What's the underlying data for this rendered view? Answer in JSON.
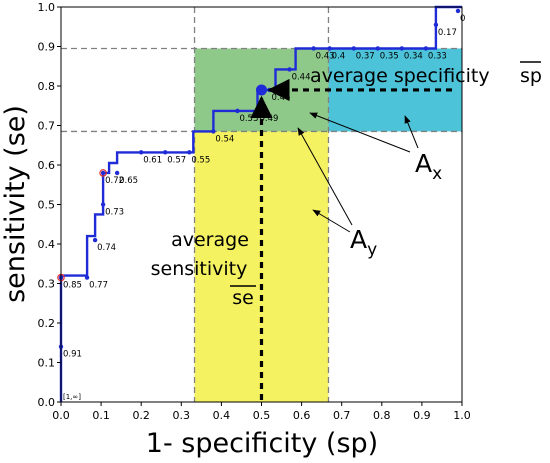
{
  "chart_data": {
    "type": "line",
    "xlabel": "1- specificity (sp)",
    "ylabel": "sensitivity (se)",
    "xlim": [
      0,
      1
    ],
    "ylim": [
      0,
      1
    ],
    "x_ticks": [
      "0.0",
      "0.1",
      "0.2",
      "0.3",
      "0.4",
      "0.5",
      "0.6",
      "0.7",
      "0.8",
      "0.9",
      "1.0"
    ],
    "y_ticks": [
      "0.0",
      "0.1",
      "0.2",
      "0.3",
      "0.4",
      "0.5",
      "0.6",
      "0.7",
      "0.8",
      "0.9",
      "1.0"
    ],
    "grid": false,
    "colors": {
      "curve": "#1f2bd6",
      "yellow_region": "#f5f262",
      "green_region": "#8fc98a",
      "blue_region": "#4cc3d8",
      "highlight_marker": "#e03030",
      "guide_lines": "#808080",
      "average_point": "#1f2bd6"
    },
    "roc_step": [
      [
        0.0,
        0.0
      ],
      [
        0.0,
        0.32
      ],
      [
        0.065,
        0.32
      ],
      [
        0.065,
        0.42
      ],
      [
        0.085,
        0.42
      ],
      [
        0.085,
        0.475
      ],
      [
        0.105,
        0.475
      ],
      [
        0.105,
        0.58
      ],
      [
        0.12,
        0.58
      ],
      [
        0.12,
        0.605
      ],
      [
        0.14,
        0.605
      ],
      [
        0.14,
        0.632
      ],
      [
        0.33,
        0.632
      ],
      [
        0.33,
        0.685
      ],
      [
        0.38,
        0.685
      ],
      [
        0.38,
        0.737
      ],
      [
        0.49,
        0.737
      ],
      [
        0.49,
        0.79
      ],
      [
        0.535,
        0.79
      ],
      [
        0.535,
        0.842
      ],
      [
        0.585,
        0.842
      ],
      [
        0.585,
        0.895
      ],
      [
        0.935,
        0.895
      ],
      [
        0.935,
        1.0
      ],
      [
        1.0,
        1.0
      ]
    ],
    "threshold_points": [
      {
        "x": 0.0,
        "y": 0.14,
        "label": "0.91"
      },
      {
        "x": 0.0,
        "y": 0.315,
        "label": "0.85"
      },
      {
        "x": 0.065,
        "y": 0.315,
        "label": "0.77"
      },
      {
        "x": 0.085,
        "y": 0.41,
        "label": "0.74"
      },
      {
        "x": 0.105,
        "y": 0.5,
        "label": "0.73"
      },
      {
        "x": 0.105,
        "y": 0.58,
        "label": "0.72"
      },
      {
        "x": 0.14,
        "y": 0.58,
        "label": "0.65"
      },
      {
        "x": 0.2,
        "y": 0.632,
        "label": "0.61"
      },
      {
        "x": 0.26,
        "y": 0.632,
        "label": "0.57"
      },
      {
        "x": 0.32,
        "y": 0.632,
        "label": "0.55"
      },
      {
        "x": 0.38,
        "y": 0.685,
        "label": "0.54"
      },
      {
        "x": 0.44,
        "y": 0.737,
        "label": "0.53"
      },
      {
        "x": 0.49,
        "y": 0.737,
        "label": "0.49"
      },
      {
        "x": 0.52,
        "y": 0.79,
        "label": "0.46"
      },
      {
        "x": 0.57,
        "y": 0.842,
        "label": "0.44"
      },
      {
        "x": 0.63,
        "y": 0.895,
        "label": "0.43"
      },
      {
        "x": 0.67,
        "y": 0.895,
        "label": "0.4"
      },
      {
        "x": 0.73,
        "y": 0.895,
        "label": "0.37"
      },
      {
        "x": 0.79,
        "y": 0.895,
        "label": "0.35"
      },
      {
        "x": 0.85,
        "y": 0.895,
        "label": "0.34"
      },
      {
        "x": 0.91,
        "y": 0.895,
        "label": "0.33"
      },
      {
        "x": 0.935,
        "y": 0.955,
        "label": "0.17"
      },
      {
        "x": 0.99,
        "y": 0.99,
        "label": "0"
      }
    ],
    "highlighted_points": [
      {
        "x": 0.0,
        "y": 0.315
      },
      {
        "x": 0.105,
        "y": 0.58
      }
    ],
    "corner_label": {
      "x": 0.0,
      "y": 0.0,
      "label": "[1,∞]"
    },
    "average_point": {
      "x": 0.5,
      "y": 0.79
    },
    "regions": [
      {
        "name": "yellow",
        "x": [
          0.333,
          0.667
        ],
        "y": [
          0,
          0.79
        ]
      },
      {
        "name": "green",
        "x": [
          0.333,
          0.667
        ],
        "y": [
          0.685,
          0.895
        ]
      },
      {
        "name": "blue",
        "x": [
          0.667,
          1.0
        ],
        "y": [
          0.685,
          0.895
        ]
      }
    ],
    "guide_lines": {
      "vertical_x": [
        0.333,
        0.667
      ],
      "horizontal_y": [
        0.685,
        0.895
      ]
    },
    "annotations": {
      "average_specificity": {
        "text": "average specificity",
        "overbar": "sp"
      },
      "average_sensitivity": {
        "line1": "average",
        "line2": "sensitivity",
        "overbar": "se"
      },
      "a_x": {
        "main": "A",
        "sub": "x"
      },
      "a_y": {
        "main": "A",
        "sub": "y"
      }
    }
  }
}
